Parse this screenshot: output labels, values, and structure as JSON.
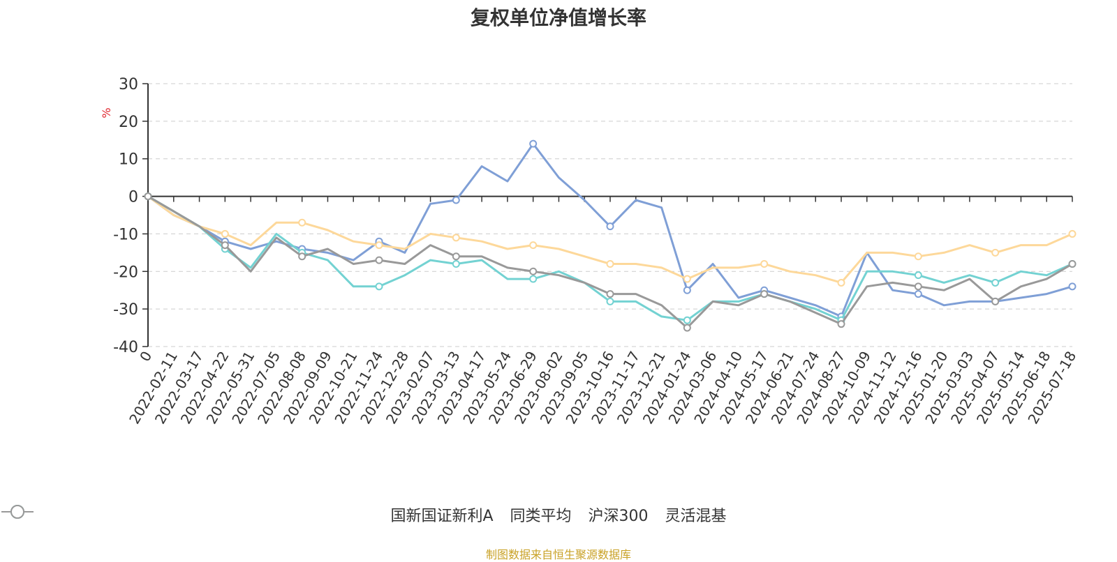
{
  "chart_data": {
    "type": "line",
    "title": "复权单位净值增长率",
    "ylabel": "%",
    "ylim": [
      -40,
      30
    ],
    "yticks": [
      30,
      20,
      10,
      0,
      -10,
      -20,
      -30,
      -40
    ],
    "categories": [
      "0",
      "2022-02-11",
      "2022-03-17",
      "2022-04-22",
      "2022-05-31",
      "2022-07-05",
      "2022-08-08",
      "2022-09-09",
      "2022-10-21",
      "2022-11-24",
      "2022-12-28",
      "2023-02-07",
      "2023-03-13",
      "2023-04-17",
      "2023-05-24",
      "2023-06-29",
      "2023-08-02",
      "2023-09-05",
      "2023-10-16",
      "2023-11-17",
      "2023-12-21",
      "2024-01-24",
      "2024-03-06",
      "2024-04-10",
      "2024-05-17",
      "2024-06-21",
      "2024-07-24",
      "2024-08-27",
      "2024-10-09",
      "2024-11-12",
      "2024-12-16",
      "2025-01-20",
      "2025-03-03",
      "2025-04-07",
      "2025-05-14",
      "2025-06-18",
      "2025-07-18"
    ],
    "grid": "horizontal-dashed",
    "legend_position": "bottom",
    "series": [
      {
        "name": "国新国证新利A",
        "color": "#7f9fd6",
        "values": [
          0,
          -5,
          -8,
          -12,
          -14,
          -12,
          -14,
          -15,
          -17,
          -12,
          -15,
          -2,
          -1,
          8,
          4,
          14,
          5,
          -1,
          -8,
          -1,
          -3,
          -25,
          -18,
          -27,
          -25,
          -27,
          -29,
          -32,
          -15,
          -25,
          -26,
          -29,
          -28,
          -28,
          -27,
          -26,
          -24
        ]
      },
      {
        "name": "同类平均",
        "color": "#fdd89a",
        "values": [
          0,
          -5,
          -8,
          -10,
          -13,
          -7,
          -7,
          -9,
          -12,
          -13,
          -14,
          -10,
          -11,
          -12,
          -14,
          -13,
          -14,
          -16,
          -18,
          -18,
          -19,
          -22,
          -19,
          -19,
          -18,
          -20,
          -21,
          -23,
          -15,
          -15,
          -16,
          -15,
          -13,
          -15,
          -13,
          -13,
          -10
        ]
      },
      {
        "name": "沪深300",
        "color": "#73d2d2",
        "values": [
          0,
          -4,
          -8,
          -14,
          -19,
          -10,
          -15,
          -17,
          -24,
          -24,
          -21,
          -17,
          -18,
          -17,
          -22,
          -22,
          -20,
          -23,
          -28,
          -28,
          -32,
          -33,
          -28,
          -28,
          -26,
          -28,
          -30,
          -33,
          -20,
          -20,
          -21,
          -23,
          -21,
          -23,
          -20,
          -21,
          -18
        ]
      },
      {
        "name": "灵活混基",
        "color": "#999999",
        "values": [
          0,
          -4,
          -8,
          -13,
          -20,
          -11,
          -16,
          -14,
          -18,
          -17,
          -18,
          -13,
          -16,
          -16,
          -19,
          -20,
          -21,
          -23,
          -26,
          -26,
          -29,
          -35,
          -28,
          -29,
          -26,
          -28,
          -31,
          -34,
          -24,
          -23,
          -24,
          -25,
          -22,
          -28,
          -24,
          -22,
          -18
        ]
      }
    ]
  },
  "source": "制图数据来自恒生聚源数据库"
}
